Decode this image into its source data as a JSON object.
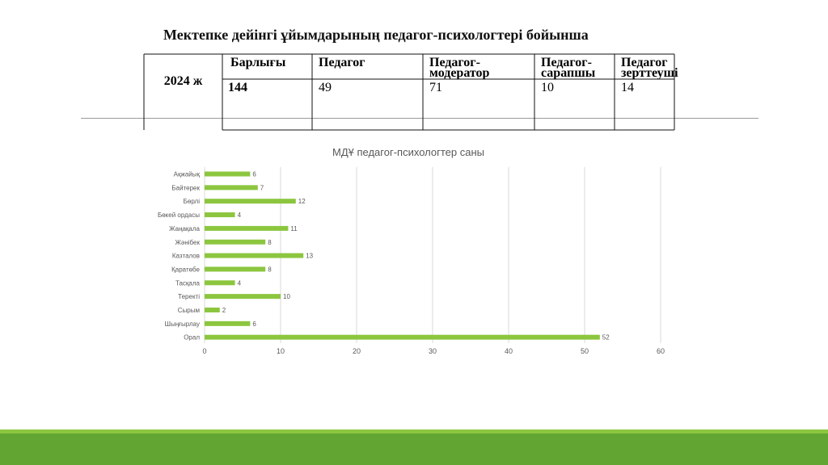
{
  "slide": {
    "title": "Мектепке дейінгі ұйымдарының педагог-психологтері  бойынша"
  },
  "table": {
    "row_label": "2024 ж",
    "headers": [
      "Барлығы",
      "Педагог",
      "Педагог-модератор",
      "Педагог-сарапшы",
      "Педагог зерттеуші"
    ],
    "header_lines": [
      [
        "Барлығы"
      ],
      [
        "Педагог"
      ],
      [
        "Педагог-модератор"
      ],
      [
        "Педагог-",
        "сарапшы"
      ],
      [
        "Педагог",
        "зерттеуші"
      ]
    ],
    "values": [
      "144",
      "49",
      "71",
      "10",
      "14"
    ]
  },
  "chart_data": {
    "type": "bar",
    "orientation": "horizontal",
    "title": "МДҰ педагог-психологтер саны",
    "categories": [
      "Ақжайық",
      "Байтерек",
      "Бөрлі",
      "Бөкей ордасы",
      "Жаңақала",
      "Жәнібек",
      "Казталов",
      "Қаратөбе",
      "Тасқала",
      "Теректі",
      "Сырым",
      "Шыңғырлау",
      "Орал"
    ],
    "values": [
      6,
      7,
      12,
      4,
      11,
      8,
      13,
      8,
      4,
      10,
      2,
      6,
      52
    ],
    "xlim": [
      0,
      60
    ],
    "xticks": [
      0,
      10,
      20,
      30,
      40,
      50,
      60
    ],
    "grid": true,
    "data_labels": true,
    "bar_color": "#8cc63f",
    "grid_color": "#d9d9d9",
    "text_color": "#595959"
  },
  "colors": {
    "footer_band": "#62a533",
    "footer_stripe": "#8cc63f"
  }
}
